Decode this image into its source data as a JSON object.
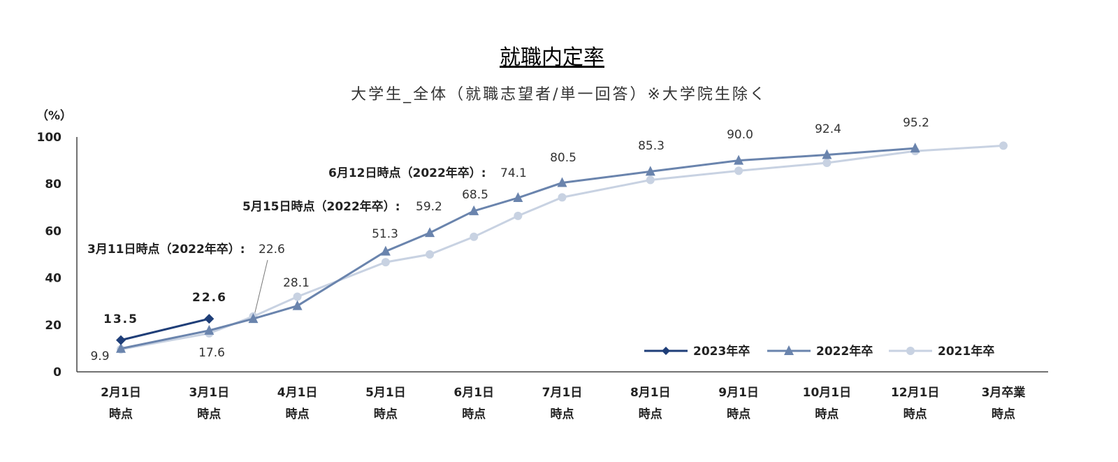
{
  "chart_data": {
    "type": "line",
    "title": "就職内定率",
    "subtitle": "大学生_全体（就職志望者/単一回答）※大学院生除く",
    "ylabel": "（%）",
    "ylim": [
      0,
      100
    ],
    "yticks": [
      "0",
      "20",
      "40",
      "60",
      "80",
      "100"
    ],
    "categories": [
      [
        "2月1日",
        "時点"
      ],
      [
        "3月1日",
        "時点"
      ],
      [
        "4月1日",
        "時点"
      ],
      [
        "5月1日",
        "時点"
      ],
      [
        "6月1日",
        "時点"
      ],
      [
        "7月1日",
        "時点"
      ],
      [
        "8月1日",
        "時点"
      ],
      [
        "9月1日",
        "時点"
      ],
      [
        "10月1日",
        "時点"
      ],
      [
        "12月1日",
        "時点"
      ],
      [
        "3月卒業",
        "時点"
      ]
    ],
    "series": [
      {
        "name": "2023年卒",
        "color": "#1f3e78",
        "marker": "diamond",
        "points": [
          [
            0,
            13.5
          ],
          [
            1,
            22.6
          ]
        ]
      },
      {
        "name": "2022年卒",
        "color": "#6a84ad",
        "marker": "triangle",
        "points": [
          [
            0,
            9.9
          ],
          [
            1,
            17.6
          ],
          [
            1.5,
            22.6
          ],
          [
            2,
            28.1
          ],
          [
            3,
            51.3
          ],
          [
            3.5,
            59.2
          ],
          [
            4,
            68.5
          ],
          [
            4.5,
            74.1
          ],
          [
            5,
            80.5
          ],
          [
            6,
            85.3
          ],
          [
            7,
            90.0
          ],
          [
            8,
            92.4
          ],
          [
            9,
            95.2
          ]
        ]
      },
      {
        "name": "2021年卒",
        "color": "#c8d2e2",
        "marker": "circle",
        "points": [
          [
            0,
            9.6
          ],
          [
            1,
            16.4
          ],
          [
            1.5,
            23.6
          ],
          [
            2,
            32.0
          ],
          [
            3,
            46.7
          ],
          [
            3.5,
            50.0
          ],
          [
            4,
            57.5
          ],
          [
            4.5,
            66.4
          ],
          [
            5,
            74.3
          ],
          [
            6,
            81.7
          ],
          [
            7,
            85.6
          ],
          [
            8,
            89.0
          ],
          [
            9,
            94.0
          ],
          [
            10,
            96.3
          ]
        ]
      }
    ],
    "data_labels": [
      {
        "text": "13.5",
        "series": "2023年卒",
        "x": 0
      },
      {
        "text": "22.6",
        "series": "2023年卒",
        "x": 1
      },
      {
        "text": "9.9",
        "series": "2022年卒",
        "x": 0
      },
      {
        "text": "17.6",
        "series": "2022年卒",
        "x": 1
      },
      {
        "text": "28.1",
        "series": "2022年卒",
        "x": 2
      },
      {
        "text": "51.3",
        "series": "2022年卒",
        "x": 3
      },
      {
        "text": "68.5",
        "series": "2022年卒",
        "x": 4
      },
      {
        "text": "80.5",
        "series": "2022年卒",
        "x": 5
      },
      {
        "text": "85.3",
        "series": "2022年卒",
        "x": 6
      },
      {
        "text": "90.0",
        "series": "2022年卒",
        "x": 7
      },
      {
        "text": "92.4",
        "series": "2022年卒",
        "x": 8
      },
      {
        "text": "95.2",
        "series": "2022年卒",
        "x": 9
      }
    ],
    "annotations": [
      {
        "label": "3月11日時点（2022年卒）:",
        "value": "22.6",
        "x": 1.5,
        "y": 22.6
      },
      {
        "label": "5月15日時点（2022年卒）:",
        "value": "59.2",
        "x": 3.5,
        "y": 59.2
      },
      {
        "label": "6月12日時点（2022年卒）:",
        "value": "74.1",
        "x": 4.5,
        "y": 74.1
      }
    ],
    "legend_position": "bottom-right",
    "grid": false
  }
}
